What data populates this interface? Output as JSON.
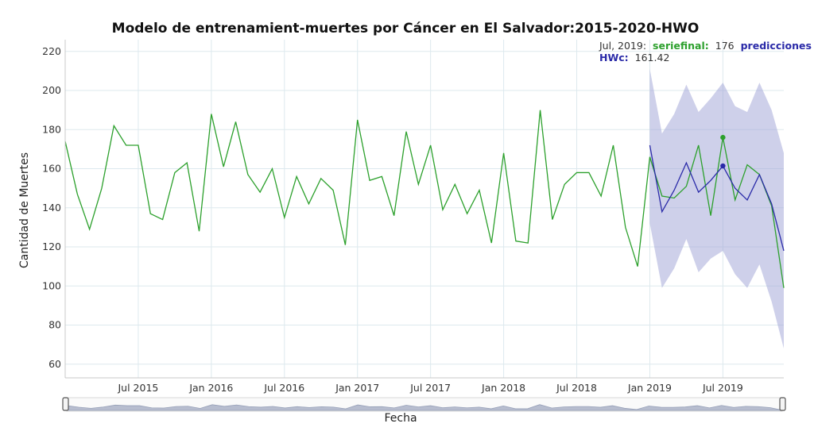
{
  "chart_data": {
    "type": "line",
    "title": "Modelo de entrenamient-muertes por Cáncer en El Salvador:2015-2020-HWO",
    "xlabel": "Fecha",
    "ylabel": "Cantidad de Muertes",
    "ylim": [
      53,
      226
    ],
    "xlim": [
      "2015-01",
      "2019-12"
    ],
    "grid": true,
    "y_ticks": [
      "60",
      "80",
      "100",
      "120",
      "140",
      "160",
      "180",
      "200",
      "220"
    ],
    "x_ticks": [
      {
        "date": "2015-07",
        "label": "Jul 2015"
      },
      {
        "date": "2016-01",
        "label": "Jan 2016"
      },
      {
        "date": "2016-07",
        "label": "Jul 2016"
      },
      {
        "date": "2017-01",
        "label": "Jan 2017"
      },
      {
        "date": "2017-07",
        "label": "Jul 2017"
      },
      {
        "date": "2018-01",
        "label": "Jan 2018"
      },
      {
        "date": "2018-07",
        "label": "Jul 2018"
      },
      {
        "date": "2019-01",
        "label": "Jan 2019"
      },
      {
        "date": "2019-07",
        "label": "Jul 2019"
      }
    ],
    "series": [
      {
        "name": "seriefinal",
        "color": "#2ca02c",
        "x": [
          "2015-01",
          "2015-02",
          "2015-03",
          "2015-04",
          "2015-05",
          "2015-06",
          "2015-07",
          "2015-08",
          "2015-09",
          "2015-10",
          "2015-11",
          "2015-12",
          "2016-01",
          "2016-02",
          "2016-03",
          "2016-04",
          "2016-05",
          "2016-06",
          "2016-07",
          "2016-08",
          "2016-09",
          "2016-10",
          "2016-11",
          "2016-12",
          "2017-01",
          "2017-02",
          "2017-03",
          "2017-04",
          "2017-05",
          "2017-06",
          "2017-07",
          "2017-08",
          "2017-09",
          "2017-10",
          "2017-11",
          "2017-12",
          "2018-01",
          "2018-02",
          "2018-03",
          "2018-04",
          "2018-05",
          "2018-06",
          "2018-07",
          "2018-08",
          "2018-09",
          "2018-10",
          "2018-11",
          "2018-12",
          "2019-01",
          "2019-02",
          "2019-03",
          "2019-04",
          "2019-05",
          "2019-06",
          "2019-07",
          "2019-08",
          "2019-09",
          "2019-10",
          "2019-11",
          "2019-12"
        ],
        "values": [
          174,
          147,
          129,
          150,
          182,
          172,
          172,
          137,
          134,
          158,
          163,
          128,
          188,
          161,
          184,
          157,
          148,
          160,
          135,
          156,
          142,
          155,
          149,
          121,
          185,
          154,
          156,
          136,
          179,
          152,
          172,
          139,
          152,
          137,
          149,
          122,
          168,
          123,
          122,
          190,
          134,
          152,
          158,
          158,
          146,
          172,
          130,
          110,
          166,
          146,
          145,
          151,
          172,
          136,
          176,
          144,
          162,
          157,
          141,
          99
        ]
      },
      {
        "name": "HWc",
        "color": "#2a2aa8",
        "x": [
          "2019-01",
          "2019-02",
          "2019-03",
          "2019-04",
          "2019-05",
          "2019-06",
          "2019-07",
          "2019-08",
          "2019-09",
          "2019-10",
          "2019-11",
          "2019-12"
        ],
        "values": [
          172,
          138,
          149,
          163,
          148,
          154,
          161.42,
          150,
          144,
          157,
          142,
          118
        ],
        "band_upper": [
          211,
          178,
          188,
          203,
          189,
          196,
          204,
          192,
          189,
          204,
          190,
          168
        ],
        "band_lower": [
          132,
          99,
          109,
          124,
          107,
          114,
          118,
          106,
          99,
          111,
          92,
          68
        ]
      }
    ],
    "band_color": "#9ea2d6",
    "highlight": {
      "date": "2019-07",
      "seriefinal": 176,
      "HWc": 161.42
    },
    "tooltip": {
      "date_label": "Jul, 2019:",
      "series_a": "seriefinal:",
      "value_a": "176",
      "label_b": "predicciones",
      "series_b": "HWc:",
      "value_b": "161.42"
    }
  }
}
